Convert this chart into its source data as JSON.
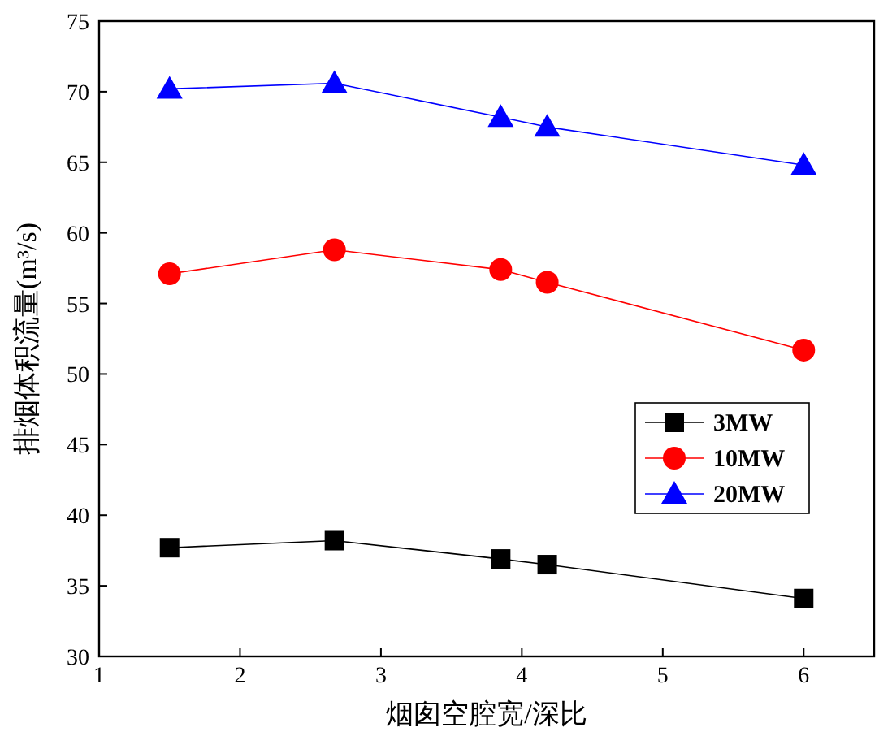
{
  "chart_data": {
    "type": "line",
    "xlabel": "烟囱空腔宽/深比",
    "ylabel": "排烟体积流量(m³/s)",
    "x": [
      1.5,
      2.67,
      3.85,
      4.18,
      6
    ],
    "series": [
      {
        "name": "3MW",
        "color": "#000000",
        "marker": "square",
        "values": [
          37.7,
          38.2,
          36.9,
          36.5,
          34.1
        ]
      },
      {
        "name": "10MW",
        "color": "#ff0000",
        "marker": "circle",
        "values": [
          57.1,
          58.8,
          57.4,
          56.5,
          51.7
        ]
      },
      {
        "name": "20MW",
        "color": "#0000ff",
        "marker": "triangle",
        "values": [
          70.2,
          70.6,
          68.2,
          67.5,
          64.8
        ]
      }
    ],
    "xlim": [
      1,
      6.5
    ],
    "xticks": [
      1,
      2,
      3,
      4,
      5,
      6
    ],
    "ylim": [
      30,
      75
    ],
    "yticks": [
      30,
      35,
      40,
      45,
      50,
      55,
      60,
      65,
      70,
      75
    ],
    "grid": false,
    "legend": "right",
    "line_style": "solid"
  }
}
